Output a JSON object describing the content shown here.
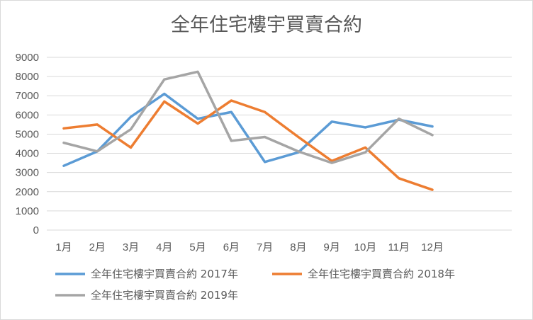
{
  "chart_data": {
    "type": "line",
    "title": "全年住宅樓宇買賣合約",
    "xlabel": "",
    "ylabel": "",
    "categories": [
      "1月",
      "2月",
      "3月",
      "4月",
      "5月",
      "6月",
      "7月",
      "8月",
      "9月",
      "10月",
      "11月",
      "12月"
    ],
    "ylim": [
      0,
      9000
    ],
    "yticks": [
      0,
      1000,
      2000,
      3000,
      4000,
      5000,
      6000,
      7000,
      8000,
      9000
    ],
    "grid": true,
    "legend_position": "bottom",
    "series": [
      {
        "name": "全年住宅樓宇買賣合約 2017年",
        "color": "#5b9bd5",
        "values": [
          3350,
          4100,
          5900,
          7100,
          5800,
          6150,
          3550,
          4050,
          5650,
          5350,
          5750,
          5400
        ]
      },
      {
        "name": "全年住宅樓宇買賣合約 2018年",
        "color": "#ed7d31",
        "values": [
          5300,
          5500,
          4300,
          6700,
          5550,
          6750,
          6150,
          4850,
          3600,
          4300,
          2700,
          2100
        ]
      },
      {
        "name": "全年住宅樓宇買賣合約 2019年",
        "color": "#a5a5a5",
        "values": [
          4550,
          4100,
          5250,
          7850,
          8250,
          4650,
          4850,
          4100,
          3500,
          4050,
          5800,
          4950
        ]
      }
    ]
  }
}
